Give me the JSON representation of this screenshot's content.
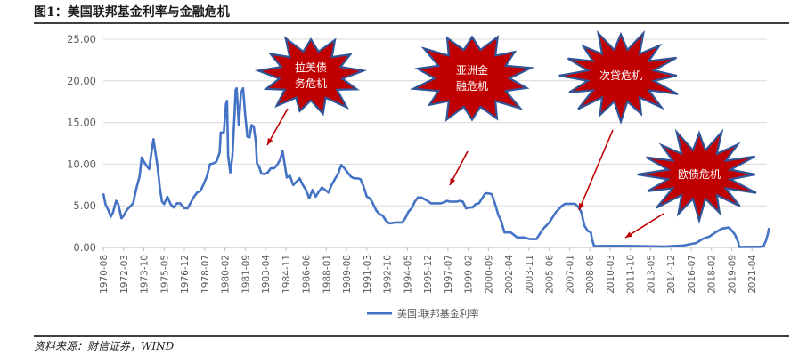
{
  "figure": {
    "title": "图1：美国联邦基金利率与金融危机",
    "source": "资料来源：财信证券，WIND"
  },
  "chart_data": {
    "type": "line",
    "xlabel": "",
    "ylabel": "",
    "ylim": [
      0,
      25
    ],
    "y_ticks": [
      "0.00",
      "5.00",
      "10.00",
      "15.00",
      "20.00",
      "25.00"
    ],
    "x_ticks": [
      "1970-08",
      "1972-03",
      "1973-10",
      "1975-05",
      "1976-12",
      "1978-07",
      "1980-02",
      "1981-09",
      "1983-04",
      "1984-11",
      "1986-06",
      "1988-01",
      "1989-08",
      "1991-03",
      "1992-10",
      "1994-05",
      "1995-12",
      "1997-07",
      "1999-02",
      "2000-09",
      "2002-04",
      "2003-11",
      "2005-06",
      "2007-01",
      "2008-08",
      "2010-03",
      "2011-10",
      "2013-05",
      "2014-12",
      "2016-07",
      "2018-02",
      "2019-09",
      "2021-04"
    ],
    "x_range": [
      "1970-08",
      "2022-06"
    ],
    "legend": "bottom",
    "grid": true,
    "series": [
      {
        "name": "美国:联邦基金利率",
        "color": "#4472c4",
        "points": [
          [
            "1970-08",
            6.5
          ],
          [
            "1970-10",
            5.2
          ],
          [
            "1971-01",
            4.4
          ],
          [
            "1971-03",
            3.7
          ],
          [
            "1971-05",
            4.2
          ],
          [
            "1971-08",
            5.6
          ],
          [
            "1971-10",
            5.2
          ],
          [
            "1972-01",
            3.5
          ],
          [
            "1972-03",
            3.8
          ],
          [
            "1972-06",
            4.5
          ],
          [
            "1972-09",
            4.9
          ],
          [
            "1972-12",
            5.3
          ],
          [
            "1973-03",
            7.1
          ],
          [
            "1973-06",
            8.5
          ],
          [
            "1973-08",
            10.8
          ],
          [
            "1973-10",
            10.3
          ],
          [
            "1973-12",
            9.9
          ],
          [
            "1974-03",
            9.4
          ],
          [
            "1974-05",
            11.3
          ],
          [
            "1974-07",
            13.0
          ],
          [
            "1974-09",
            11.3
          ],
          [
            "1974-11",
            9.5
          ],
          [
            "1975-01",
            7.1
          ],
          [
            "1975-03",
            5.5
          ],
          [
            "1975-05",
            5.2
          ],
          [
            "1975-08",
            6.1
          ],
          [
            "1975-11",
            5.2
          ],
          [
            "1976-02",
            4.8
          ],
          [
            "1976-05",
            5.3
          ],
          [
            "1976-08",
            5.3
          ],
          [
            "1976-12",
            4.7
          ],
          [
            "1977-03",
            4.7
          ],
          [
            "1977-06",
            5.4
          ],
          [
            "1977-09",
            6.1
          ],
          [
            "1977-12",
            6.6
          ],
          [
            "1978-03",
            6.8
          ],
          [
            "1978-06",
            7.6
          ],
          [
            "1978-09",
            8.5
          ],
          [
            "1978-12",
            10.0
          ],
          [
            "1979-03",
            10.1
          ],
          [
            "1979-06",
            10.3
          ],
          [
            "1979-09",
            11.4
          ],
          [
            "1979-10",
            13.8
          ],
          [
            "1980-01",
            13.8
          ],
          [
            "1980-03",
            17.2
          ],
          [
            "1980-04",
            17.6
          ],
          [
            "1980-05",
            11.0
          ],
          [
            "1980-07",
            9.0
          ],
          [
            "1980-09",
            10.9
          ],
          [
            "1980-11",
            15.9
          ],
          [
            "1980-12",
            18.9
          ],
          [
            "1981-01",
            19.1
          ],
          [
            "1981-03",
            14.7
          ],
          [
            "1981-05",
            18.5
          ],
          [
            "1981-07",
            19.1
          ],
          [
            "1981-09",
            15.9
          ],
          [
            "1981-11",
            13.3
          ],
          [
            "1982-01",
            13.2
          ],
          [
            "1982-03",
            14.7
          ],
          [
            "1982-05",
            14.5
          ],
          [
            "1982-07",
            12.6
          ],
          [
            "1982-08",
            10.1
          ],
          [
            "1982-10",
            9.7
          ],
          [
            "1982-12",
            8.9
          ],
          [
            "1983-03",
            8.8
          ],
          [
            "1983-06",
            9.0
          ],
          [
            "1983-09",
            9.5
          ],
          [
            "1983-12",
            9.5
          ],
          [
            "1984-03",
            9.9
          ],
          [
            "1984-06",
            10.6
          ],
          [
            "1984-08",
            11.6
          ],
          [
            "1984-10",
            10.0
          ],
          [
            "1984-12",
            8.4
          ],
          [
            "1985-03",
            8.6
          ],
          [
            "1985-06",
            7.5
          ],
          [
            "1985-09",
            7.9
          ],
          [
            "1985-12",
            8.3
          ],
          [
            "1986-03",
            7.5
          ],
          [
            "1986-06",
            6.9
          ],
          [
            "1986-09",
            5.9
          ],
          [
            "1986-12",
            6.9
          ],
          [
            "1987-03",
            6.1
          ],
          [
            "1987-06",
            6.7
          ],
          [
            "1987-09",
            7.2
          ],
          [
            "1987-12",
            6.9
          ],
          [
            "1988-03",
            6.6
          ],
          [
            "1988-06",
            7.5
          ],
          [
            "1988-09",
            8.2
          ],
          [
            "1988-12",
            8.8
          ],
          [
            "1989-03",
            9.9
          ],
          [
            "1989-06",
            9.5
          ],
          [
            "1989-09",
            9.0
          ],
          [
            "1989-12",
            8.5
          ],
          [
            "1990-03",
            8.3
          ],
          [
            "1990-06",
            8.3
          ],
          [
            "1990-09",
            8.2
          ],
          [
            "1990-12",
            7.3
          ],
          [
            "1991-03",
            6.1
          ],
          [
            "1991-06",
            5.9
          ],
          [
            "1991-09",
            5.2
          ],
          [
            "1991-12",
            4.4
          ],
          [
            "1992-03",
            4.0
          ],
          [
            "1992-06",
            3.8
          ],
          [
            "1992-09",
            3.2
          ],
          [
            "1992-12",
            2.9
          ],
          [
            "1993-06",
            3.0
          ],
          [
            "1993-12",
            3.0
          ],
          [
            "1994-03",
            3.5
          ],
          [
            "1994-06",
            4.3
          ],
          [
            "1994-09",
            4.7
          ],
          [
            "1994-12",
            5.5
          ],
          [
            "1995-03",
            6.0
          ],
          [
            "1995-06",
            6.0
          ],
          [
            "1995-09",
            5.8
          ],
          [
            "1995-12",
            5.6
          ],
          [
            "1996-03",
            5.3
          ],
          [
            "1996-06",
            5.3
          ],
          [
            "1996-09",
            5.3
          ],
          [
            "1996-12",
            5.3
          ],
          [
            "1997-03",
            5.4
          ],
          [
            "1997-06",
            5.6
          ],
          [
            "1997-09",
            5.5
          ],
          [
            "1997-12",
            5.5
          ],
          [
            "1998-03",
            5.5
          ],
          [
            "1998-06",
            5.6
          ],
          [
            "1998-09",
            5.5
          ],
          [
            "1998-12",
            4.7
          ],
          [
            "1999-03",
            4.8
          ],
          [
            "1999-06",
            4.8
          ],
          [
            "1999-09",
            5.2
          ],
          [
            "1999-12",
            5.3
          ],
          [
            "2000-03",
            5.9
          ],
          [
            "2000-06",
            6.5
          ],
          [
            "2000-09",
            6.5
          ],
          [
            "2000-12",
            6.4
          ],
          [
            "2001-03",
            5.3
          ],
          [
            "2001-06",
            4.0
          ],
          [
            "2001-09",
            3.1
          ],
          [
            "2001-12",
            1.8
          ],
          [
            "2002-06",
            1.8
          ],
          [
            "2002-12",
            1.2
          ],
          [
            "2003-06",
            1.2
          ],
          [
            "2003-12",
            1.0
          ],
          [
            "2004-06",
            1.0
          ],
          [
            "2004-09",
            1.6
          ],
          [
            "2004-12",
            2.2
          ],
          [
            "2005-06",
            3.0
          ],
          [
            "2005-12",
            4.2
          ],
          [
            "2006-06",
            5.0
          ],
          [
            "2006-09",
            5.25
          ],
          [
            "2007-06",
            5.25
          ],
          [
            "2007-09",
            4.9
          ],
          [
            "2007-12",
            4.25
          ],
          [
            "2008-03",
            2.6
          ],
          [
            "2008-06",
            2.0
          ],
          [
            "2008-09",
            1.8
          ],
          [
            "2008-10",
            1.0
          ],
          [
            "2008-12",
            0.16
          ],
          [
            "2010-06",
            0.18
          ],
          [
            "2012-06",
            0.16
          ],
          [
            "2014-06",
            0.1
          ],
          [
            "2015-12",
            0.24
          ],
          [
            "2016-06",
            0.38
          ],
          [
            "2016-12",
            0.54
          ],
          [
            "2017-06",
            1.04
          ],
          [
            "2017-12",
            1.3
          ],
          [
            "2018-06",
            1.82
          ],
          [
            "2018-12",
            2.27
          ],
          [
            "2019-06",
            2.38
          ],
          [
            "2019-09",
            2.04
          ],
          [
            "2019-12",
            1.55
          ],
          [
            "2020-03",
            0.65
          ],
          [
            "2020-04",
            0.05
          ],
          [
            "2021-06",
            0.08
          ],
          [
            "2021-12",
            0.08
          ],
          [
            "2022-03",
            0.2
          ],
          [
            "2022-05",
            0.77
          ],
          [
            "2022-06",
            1.21
          ],
          [
            "2022-07",
            1.68
          ],
          [
            "2022-08",
            2.33
          ]
        ]
      }
    ],
    "annotations": [
      {
        "label_lines": [
          "拉美债",
          "务危机"
        ]
      },
      {
        "label_lines": [
          "亚洲金",
          "融危机"
        ]
      },
      {
        "label_lines": [
          "次贷危机"
        ]
      },
      {
        "label_lines": [
          "欧债危机"
        ]
      }
    ]
  }
}
